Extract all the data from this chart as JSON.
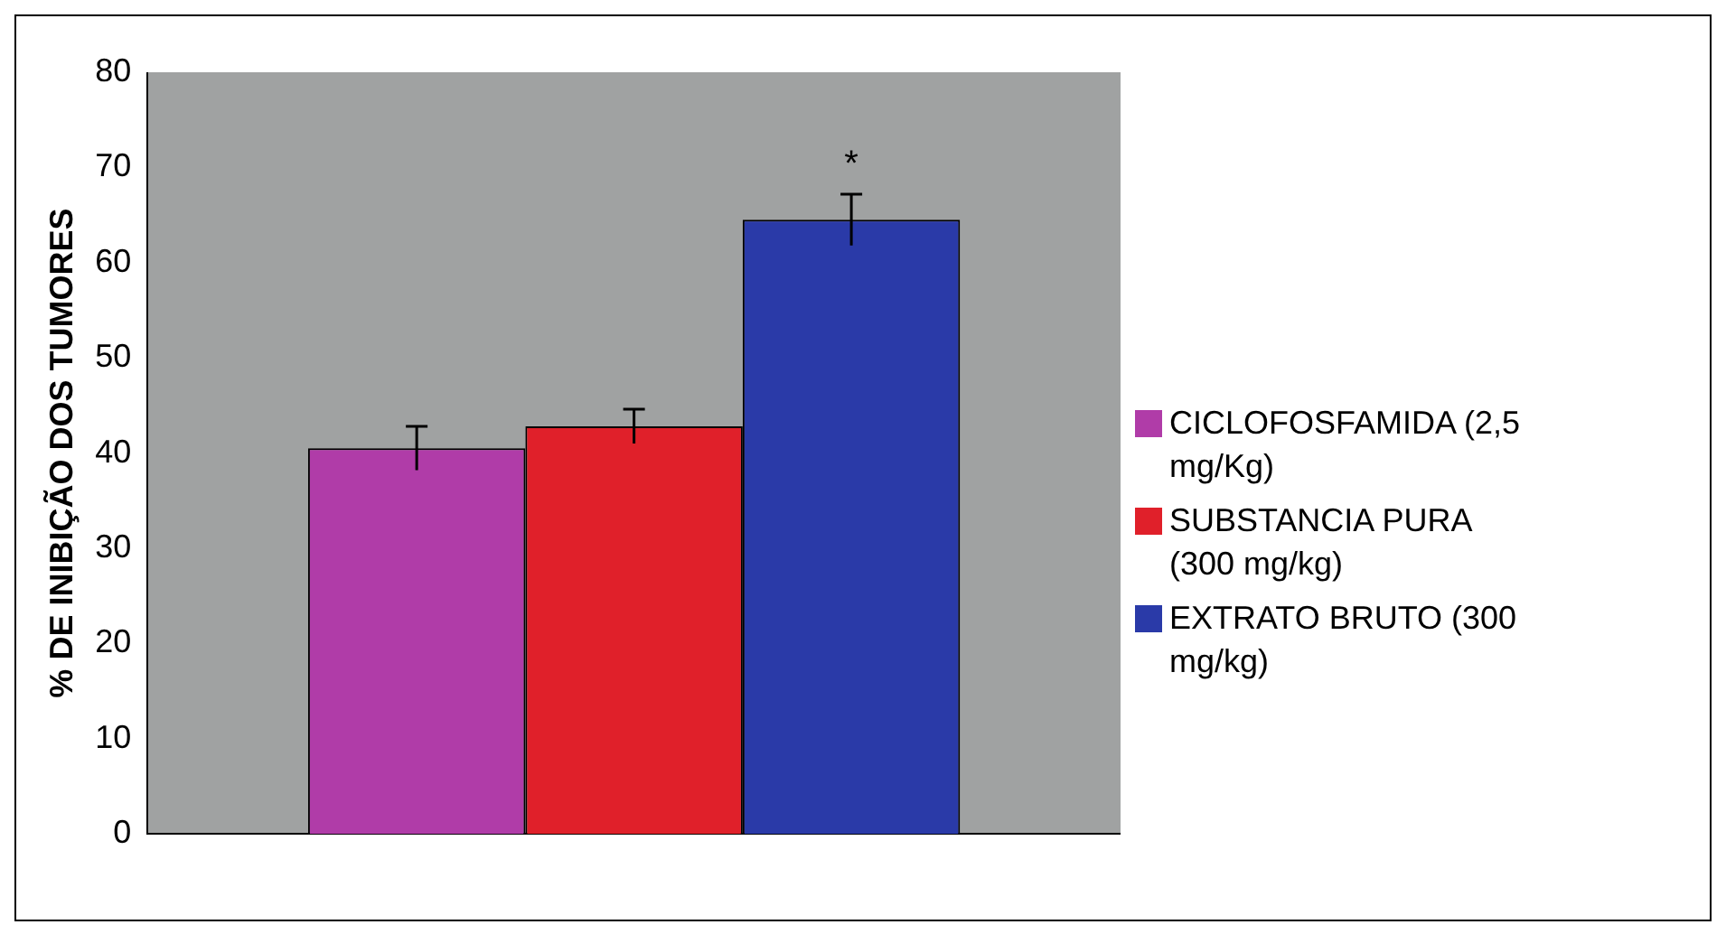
{
  "chart_data": {
    "type": "bar",
    "ylabel": "% DE INIBIÇÃO DOS TUMORES",
    "categories": [
      null
    ],
    "series": [
      {
        "name": "CICLOFOSFAMIDA (2,5 mg/Kg)",
        "color": "#b03ca8",
        "values": [
          40.5
        ],
        "errors": [
          2.3
        ]
      },
      {
        "name": "SUBSTANCIA PURA (300 mg/kg)",
        "color": "#e0202a",
        "values": [
          42.8
        ],
        "errors": [
          1.8
        ]
      },
      {
        "name": "EXTRATO BRUTO (300 mg/kg)",
        "color": "#2a3aa8",
        "values": [
          64.5
        ],
        "errors": [
          2.7
        ]
      }
    ],
    "annotations": [
      "*"
    ],
    "ylim": [
      0,
      80
    ],
    "yticks": [
      0,
      10,
      20,
      30,
      40,
      50,
      60,
      70,
      80
    ],
    "grid": false,
    "legend": "right"
  }
}
